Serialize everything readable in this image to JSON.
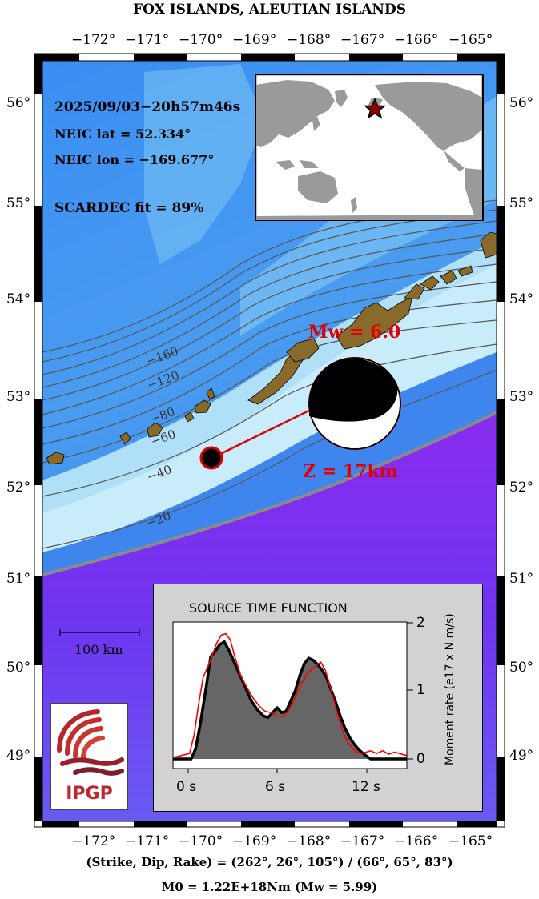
{
  "title": "FOX ISLANDS, ALEUTIAN ISLANDS",
  "lon_ticks": [
    "−172°",
    "−171°",
    "−170°",
    "−169°",
    "−168°",
    "−167°",
    "−166°",
    "−165°"
  ],
  "lat_ticks": [
    "56°",
    "55°",
    "54°",
    "53°",
    "52°",
    "51°",
    "50°",
    "49°"
  ],
  "event": {
    "datetime": "2025/09/03−20h57m46s",
    "lat_label": "NEIC lat  = 52.334°",
    "lon_label": "NEIC lon = −169.677°",
    "fit_label": "SCARDEC fit = 89%",
    "mw_label": "Mw = 6.0",
    "depth_label": "Z =  17km",
    "lat": 52.334,
    "lon": -169.677
  },
  "contour_labels": [
    "−160",
    "−120",
    "−80",
    "−60",
    "−40",
    "−20"
  ],
  "scale_bar_label": "100 km",
  "logo_text": "IPGP",
  "colors": {
    "deep_ocean": "#7a28f0",
    "ocean": "#3f8ff0",
    "shelf": "#c8ecfa",
    "land": "#8a6a2a",
    "event_red": "#e00000",
    "logo_red": "#c0272d"
  },
  "stf": {
    "title": "SOURCE TIME FUNCTION",
    "ylabel": "Moment rate (e17 x N.m/s)",
    "xticks": [
      "0 s",
      "6 s",
      "12 s"
    ],
    "yticks": [
      "2",
      "1",
      "0"
    ]
  },
  "footer": {
    "planes": "(Strike, Dip, Rake) = (262°, 26°, 105°) / (66°, 65°, 83°)",
    "moment": "M0 = 1.22E+18Nm  (Mw = 5.99)"
  },
  "chart_data": {
    "type": "line",
    "title": "SOURCE TIME FUNCTION",
    "xlabel": "",
    "ylabel": "Moment rate (e17 x N.m/s)",
    "xlim": [
      -1,
      14.5
    ],
    "ylim": [
      0,
      2
    ],
    "xticks": [
      0,
      6,
      12
    ],
    "yticks": [
      0,
      1,
      2
    ],
    "series": [
      {
        "x": [
          -1,
          0.2,
          0.5,
          0.8,
          1.2,
          1.5,
          1.8,
          2.1,
          2.4,
          2.7,
          3.0,
          3.4,
          3.8,
          4.2,
          4.6,
          5.0,
          5.3,
          5.6,
          5.9,
          6.2,
          6.5,
          6.8,
          7.1,
          7.4,
          7.7,
          8.0,
          8.3,
          8.6,
          8.9,
          9.2,
          9.5,
          9.8,
          10.1,
          10.4,
          10.7,
          11.0,
          11.3,
          11.6,
          11.9,
          12.1,
          14.5
        ],
        "y": [
          0,
          0,
          0.15,
          0.5,
          1.05,
          1.5,
          1.58,
          1.68,
          1.72,
          1.6,
          1.45,
          1.25,
          1.05,
          0.85,
          0.72,
          0.63,
          0.61,
          0.68,
          0.75,
          0.68,
          0.7,
          0.85,
          1.0,
          1.22,
          1.4,
          1.48,
          1.45,
          1.38,
          1.3,
          1.18,
          1.0,
          0.82,
          0.62,
          0.45,
          0.32,
          0.22,
          0.14,
          0.08,
          0.03,
          0,
          0
        ]
      },
      {
        "x": [
          -1,
          0.1,
          0.4,
          0.7,
          1.0,
          1.3,
          1.6,
          1.9,
          2.2,
          2.5,
          2.8,
          3.1,
          3.5,
          3.9,
          4.3,
          4.7,
          5.1,
          5.5,
          5.9,
          6.3,
          6.7,
          7.1,
          7.5,
          7.9,
          8.2,
          8.5,
          8.8,
          9.1,
          9.4,
          9.7,
          10.0,
          10.3,
          10.6,
          10.9,
          11.2,
          11.5,
          11.8,
          12.1,
          12.5,
          12.9,
          13.3,
          13.7,
          14.5
        ],
        "y": [
          0.02,
          0.08,
          0.35,
          0.8,
          1.2,
          1.35,
          1.52,
          1.7,
          1.82,
          1.84,
          1.75,
          1.5,
          1.22,
          1.05,
          0.9,
          0.78,
          0.7,
          0.68,
          0.63,
          0.62,
          0.72,
          0.9,
          1.1,
          1.25,
          1.32,
          1.38,
          1.42,
          1.3,
          1.08,
          0.82,
          0.58,
          0.38,
          0.24,
          0.15,
          0.1,
          0.08,
          0.1,
          0.12,
          0.08,
          0.12,
          0.07,
          0.1,
          0.05
        ]
      }
    ]
  }
}
